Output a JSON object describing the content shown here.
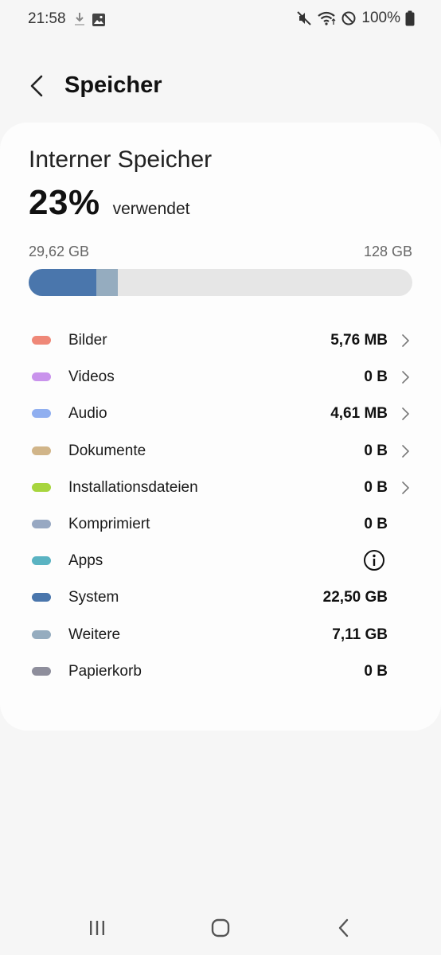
{
  "status_bar": {
    "time": "21:58",
    "battery": "100%",
    "icons": [
      "download-icon",
      "image-icon",
      "mute-icon",
      "wifi-icon",
      "do-not-disturb-icon",
      "battery-icon"
    ]
  },
  "header": {
    "title": "Speicher",
    "back_icon": "chevron-left-icon"
  },
  "storage": {
    "name": "Interner Speicher",
    "percent": "23%",
    "percent_value": 23,
    "used_label": "verwendet",
    "used_capacity": "29,62 GB",
    "total_capacity": "128 GB",
    "bar_segments": [
      {
        "category": "System",
        "fraction": 0.176,
        "color": "#4a76ac"
      },
      {
        "category": "Weitere",
        "fraction": 0.056,
        "color": "#95acbf"
      }
    ]
  },
  "categories": [
    {
      "label": "Bilder",
      "value": "5,76 MB",
      "color": "#ef8878",
      "action": "chevron"
    },
    {
      "label": "Videos",
      "value": "0 B",
      "color": "#c993ec",
      "action": "chevron"
    },
    {
      "label": "Audio",
      "value": "4,61 MB",
      "color": "#90aff0",
      "action": "chevron"
    },
    {
      "label": "Dokumente",
      "value": "0 B",
      "color": "#d1b589",
      "action": "chevron"
    },
    {
      "label": "Installationsdateien",
      "value": "0 B",
      "color": "#a7d53e",
      "action": "chevron"
    },
    {
      "label": "Komprimiert",
      "value": "0 B",
      "color": "#97a8c2",
      "action": "none"
    },
    {
      "label": "Apps",
      "value": "",
      "color": "#5ab3c2",
      "action": "info"
    },
    {
      "label": "System",
      "value": "22,50 GB",
      "color": "#4a76ac",
      "action": "none"
    },
    {
      "label": "Weitere",
      "value": "7,11 GB",
      "color": "#95acbf",
      "action": "none"
    },
    {
      "label": "Papierkorb",
      "value": "0 B",
      "color": "#8e8e9c",
      "action": "none"
    }
  ],
  "nav_bar": {
    "recents_icon": "recents-icon",
    "home_icon": "home-icon",
    "back_icon": "back-icon"
  }
}
